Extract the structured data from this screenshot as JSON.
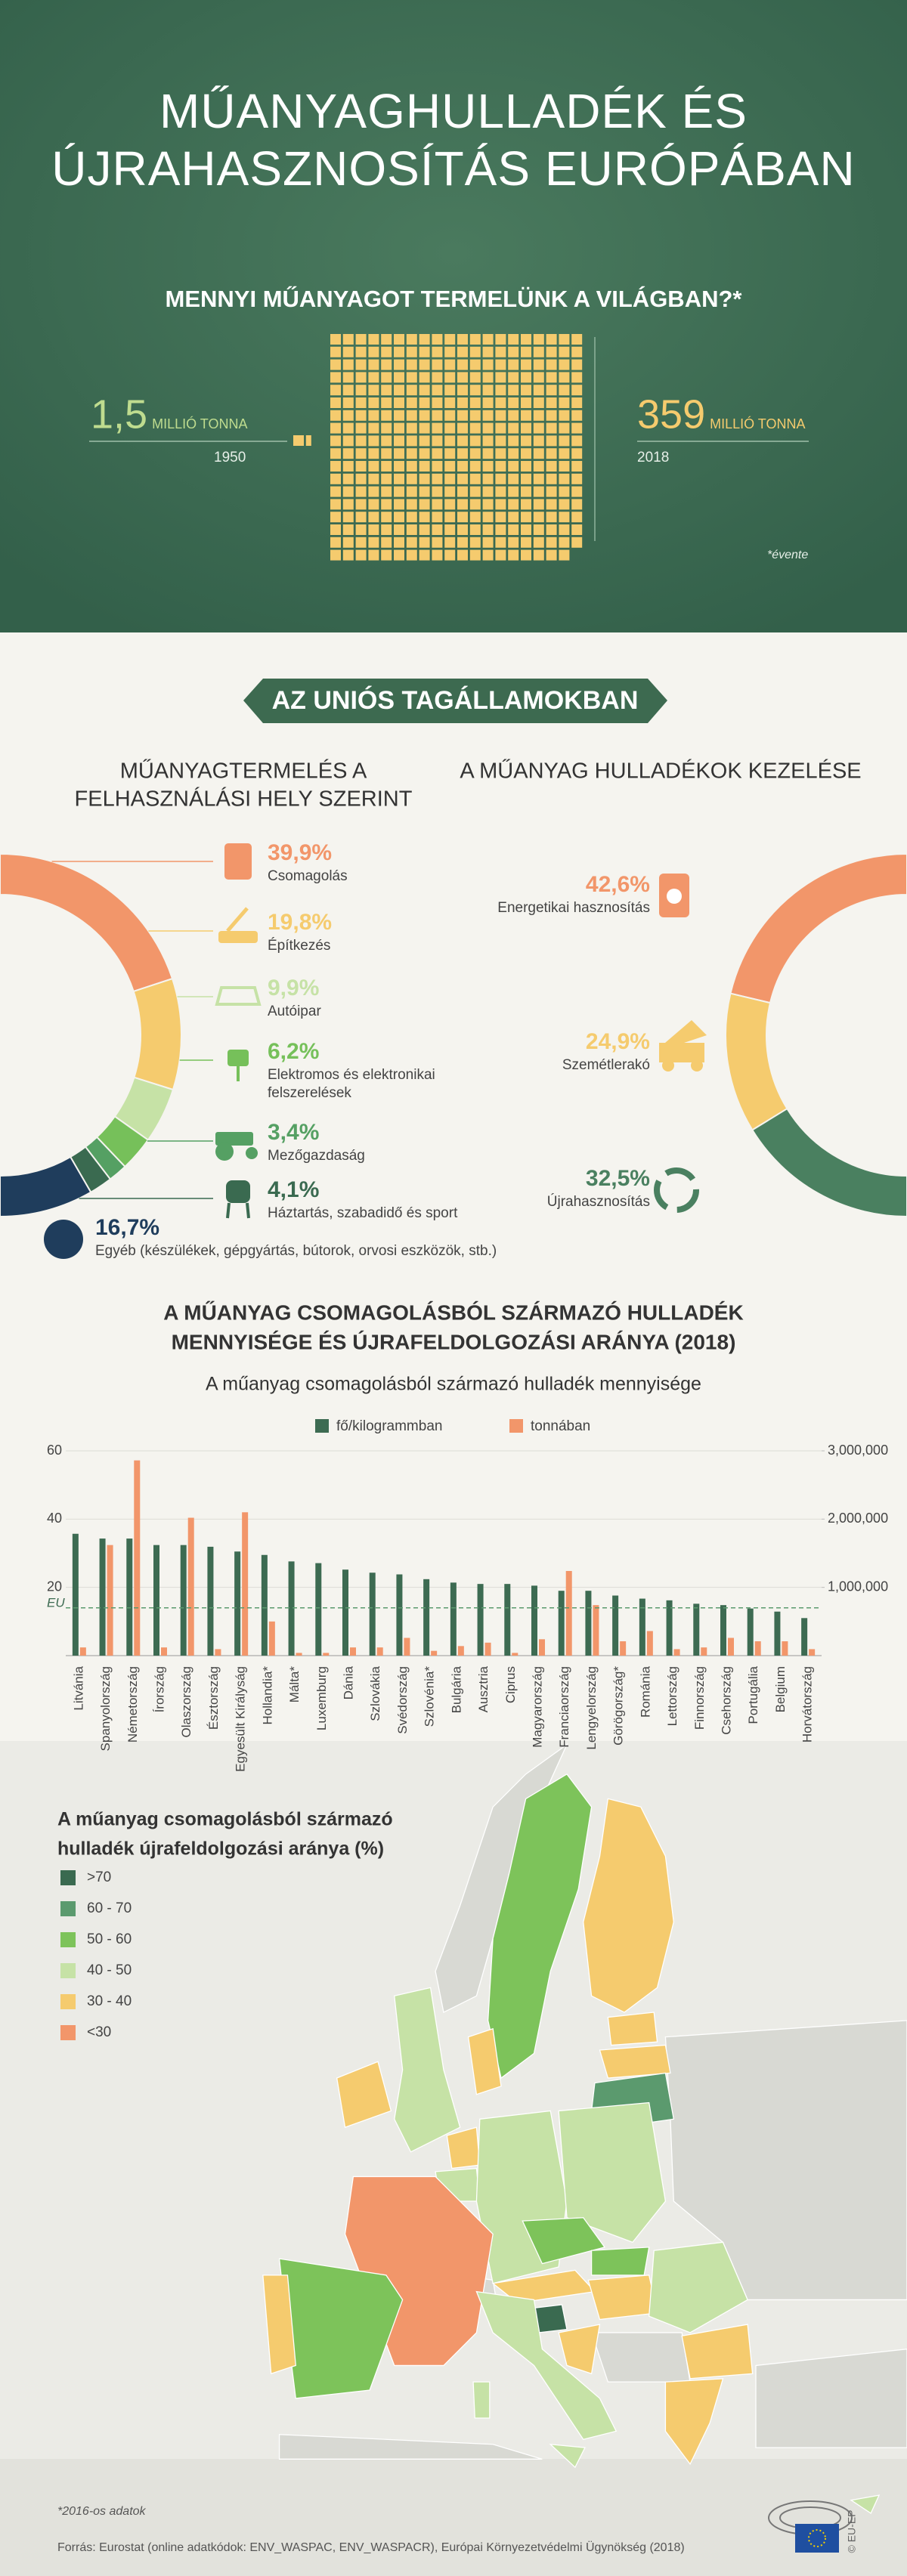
{
  "header": {
    "title_lines": [
      "MŰANYAGHULLADÉK ÉS",
      "ÚJRAHASZNOSÍTÁS EURÓPÁBAN"
    ]
  },
  "world": {
    "question": "MENNYI MŰANYAGOT TERMELÜNK A VILÁGBAN?*",
    "items": [
      {
        "value": 1.5,
        "value_label": "1,5",
        "unit": "MILLIÓ TONNA",
        "year": "1950"
      },
      {
        "value": 359,
        "unit": "MILLIÓ TONNA",
        "year": "2018"
      }
    ],
    "note": "*évente"
  },
  "eu": {
    "banner": "AZ UNIÓS TAGÁLLAMOKBAN",
    "production": {
      "title_lines": [
        "MŰANYAGTERMELÉS A",
        "FELHASZNÁLÁSI HELY SZERINT"
      ],
      "items": [
        {
          "value": 39.9,
          "value_label": "39,9%",
          "label_lines": [
            "Csomagolás"
          ],
          "color": "#f2966a"
        },
        {
          "value": 19.8,
          "value_label": "19,8%",
          "label_lines": [
            "Építkezés"
          ],
          "color": "#f5cb6e"
        },
        {
          "value": 9.9,
          "value_label": "9,9%",
          "label_lines": [
            "Autóipar"
          ],
          "color": "#c6e2a6"
        },
        {
          "value": 6.2,
          "value_label": "6,2%",
          "label_lines": [
            "Elektromos és elektronikai",
            "felszerelések"
          ],
          "color": "#76c05a"
        },
        {
          "value": 3.4,
          "value_label": "3,4%",
          "label_lines": [
            "Mezőgazdaság"
          ],
          "color": "#55a063"
        },
        {
          "value": 4.1,
          "value_label": "4,1%",
          "label_lines": [
            "Háztartás, szabadidő és sport"
          ],
          "color": "#3a6a50"
        },
        {
          "value": 16.7,
          "value_label": "16,7%",
          "label_lines": [
            "Egyéb (készülékek, gépgyártás, bútorok, orvosi eszközök, stb.)"
          ],
          "color": "#1f3d5c"
        }
      ]
    },
    "waste": {
      "title_lines": [
        "A MŰANYAG HULLADÉKOK KEZELÉSE"
      ],
      "items": [
        {
          "value": 42.6,
          "value_label": "42,6%",
          "label_lines": [
            "Energetikai hasznosítás"
          ],
          "color": "#f2966a"
        },
        {
          "value": 24.9,
          "value_label": "24,9%",
          "label_lines": [
            "Szemétlerakó"
          ],
          "color": "#f5cb6e"
        },
        {
          "value": 32.5,
          "value_label": "32,5%",
          "label_lines": [
            "Újrahasznosítás"
          ],
          "color": "#4a8060"
        }
      ]
    }
  },
  "section": {
    "title_lines": [
      "A MŰANYAG CSOMAGOLÁSBÓL SZÁRMAZÓ HULLADÉK",
      "MENNYISÉGE ÉS ÚJRAFELDOLGOZÁSI ARÁNYA (2018)"
    ]
  },
  "chart_data": {
    "type": "bar",
    "title": "A műanyag csomagolásból származó hulladék mennyisége",
    "categories": [
      "Litvánia",
      "Spanyolország",
      "Németország",
      "Írország",
      "Olaszország",
      "Észtország",
      "Egyesült Királyság",
      "Hollandia*",
      "Málta*",
      "Luxemburg",
      "Dánia",
      "Szlovákia",
      "Svédország",
      "Szlovénia*",
      "Bulgária",
      "Ausztria",
      "Ciprus",
      "Magyarország",
      "Franciaország",
      "Lengyelország",
      "Görögország*",
      "Románia",
      "Lettország",
      "Finnország",
      "Csehország",
      "Portugália",
      "Belgium",
      "Horvátország"
    ],
    "series": [
      {
        "name": "fő/kilogrammban",
        "color": "#3d6b52",
        "values": [
          35.7,
          34.3,
          34.3,
          32.4,
          32.4,
          31.9,
          30.5,
          29.5,
          27.6,
          27.1,
          25.2,
          24.3,
          23.8,
          22.4,
          21.4,
          21,
          21,
          20.5,
          19,
          19,
          17.6,
          16.7,
          16.2,
          15.2,
          14.8,
          13.8,
          12.9,
          11
        ]
      },
      {
        "name": "tonnában",
        "color": "#f2966a",
        "axis": "y2",
        "values": [
          120000,
          1620000,
          2860000,
          120000,
          2020000,
          95000,
          2100000,
          500000,
          40000,
          40000,
          120000,
          120000,
          260000,
          70000,
          140000,
          190000,
          40000,
          240000,
          1240000,
          740000,
          210000,
          360000,
          95000,
          120000,
          260000,
          210000,
          210000,
          95000
        ]
      }
    ],
    "ylim": [
      0,
      60
    ],
    "yticks": [
      20,
      40,
      60
    ],
    "y2lim": [
      0,
      3000000
    ],
    "y2ticks": [
      {
        "value": 1000000,
        "label": "1,000,000"
      },
      {
        "value": 2000000,
        "label": "2,000,000"
      },
      {
        "value": 3000000,
        "label": "3,000,000"
      }
    ],
    "grid": true,
    "annotations": [
      {
        "text": "EU",
        "value": 14
      }
    ]
  },
  "map": {
    "title_lines": [
      "A műanyag csomagolásból származó",
      "hulladék újrafeldolgozási aránya (%)"
    ],
    "legend": [
      {
        "label": ">70",
        "color": "#3a6a50"
      },
      {
        "label": "60 - 70",
        "color": "#5b9a6e"
      },
      {
        "label": "50 - 60",
        "color": "#7dc35a"
      },
      {
        "label": "40 - 50",
        "color": "#c6e2a6"
      },
      {
        "label": "30 - 40",
        "color": "#f5cb6e"
      },
      {
        "label": "<30",
        "color": "#f2966a"
      }
    ]
  },
  "footer": {
    "note": "*2016-os adatok",
    "source": "Forrás: Eurostat (online adatkódok: ENV_WASPAC, ENV_WASPACR), Európai Környezetvédelmi Ügynökség (2018)",
    "credit": "© EU-EP"
  }
}
